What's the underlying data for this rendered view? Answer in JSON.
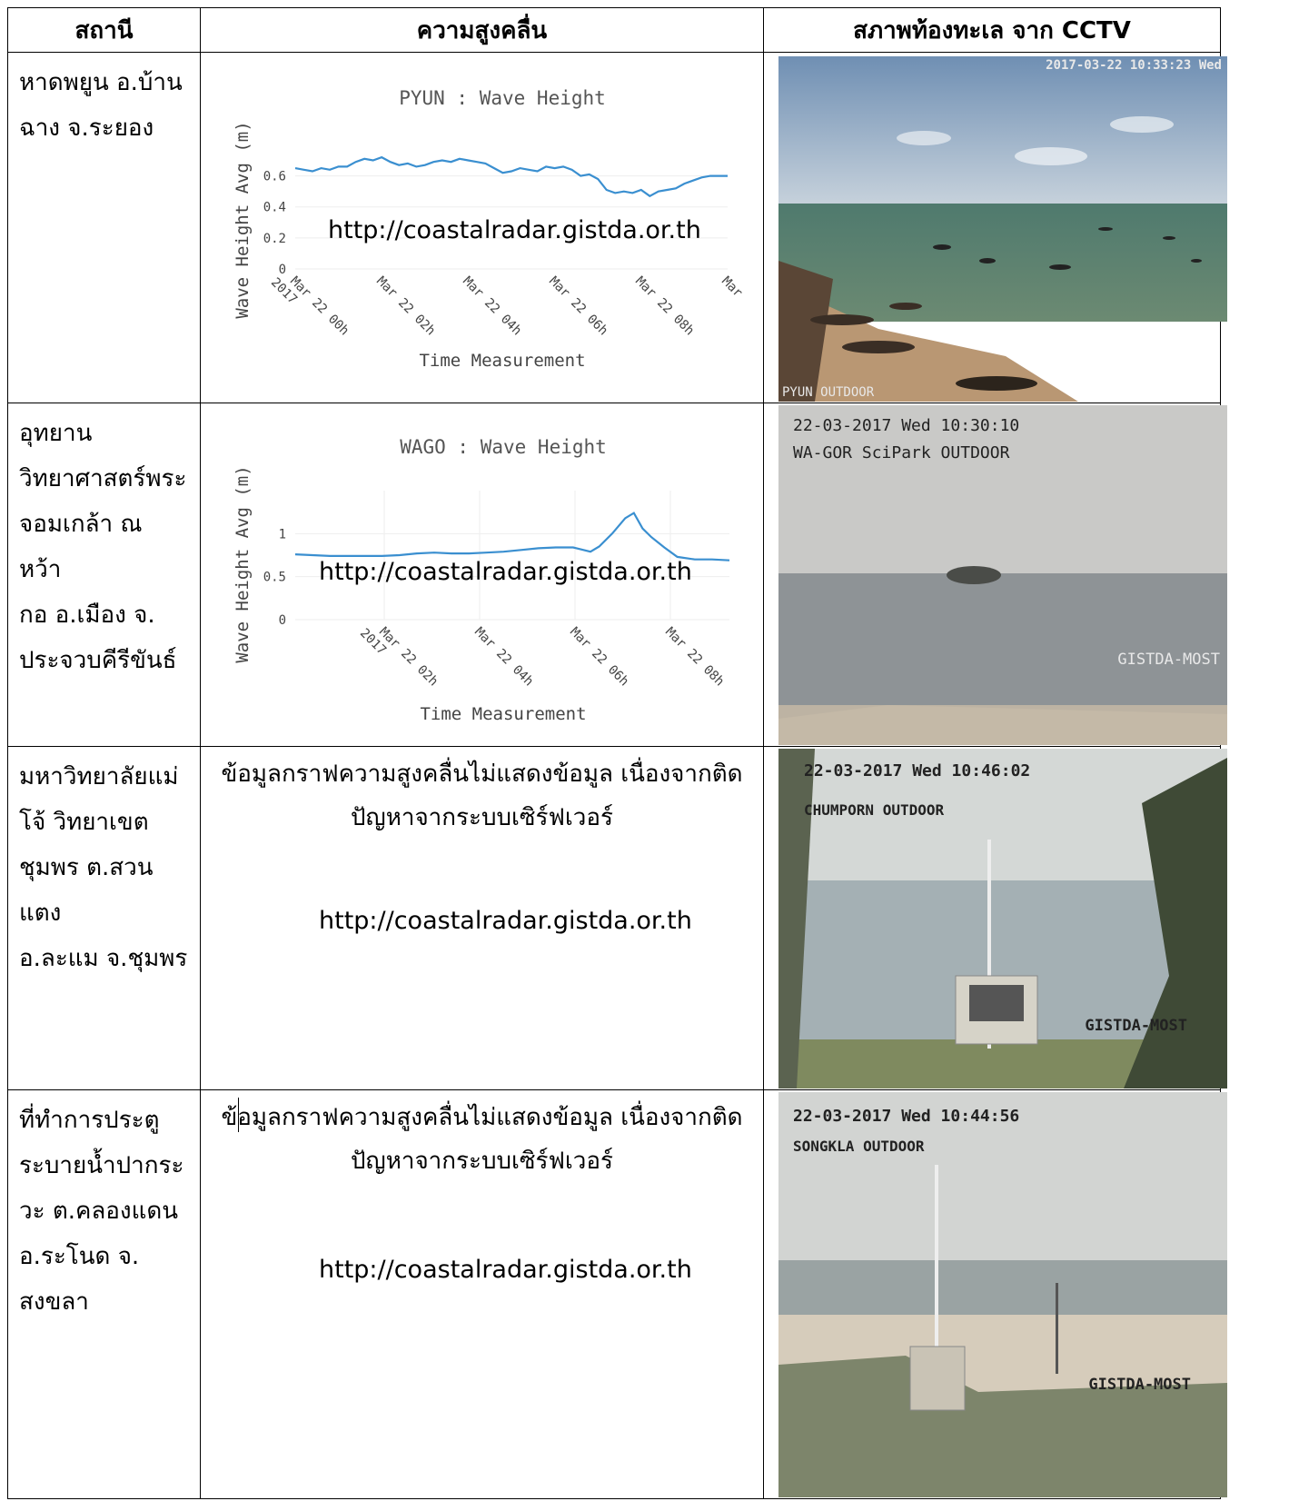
{
  "headers": [
    "สถานี",
    "ความสูงคลื่น",
    "สภาพท้องทะเล จาก CCTV"
  ],
  "watermark_url": "http://coastalradar.gistda.or.th",
  "nodata_line1": "ข้อมูลกราฟความสูงคลื่นไม่แสดงข้อมูล เนื่องจากติด",
  "nodata_line2": "ปัญหาจากระบบเซิร์ฟเวอร์",
  "rows": [
    {
      "station_lines": [
        "หาดพยูน อ.บ้าน",
        "ฉาง จ.ระยอง"
      ],
      "cctv": {
        "top_text": "2017-03-22 10:33:23 Wed",
        "second_text": "",
        "bottom_text": "PYUN OUTDOOR",
        "right_text": ""
      }
    },
    {
      "station_lines": [
        "อุทยาน",
        "วิทยาศาสตร์พระ",
        "จอมเกล้า ณ หว้า",
        "กอ อ.เมือง จ.",
        "ประจวบคีรีขันธ์"
      ],
      "cctv": {
        "top_text": "22-03-2017 Wed 10:30:10",
        "second_text": "WA-GOR SciPark OUTDOOR",
        "bottom_text": "",
        "right_text": "GISTDA-MOST"
      }
    },
    {
      "station_lines": [
        "มหาวิทยาลัยแม่",
        "โจ้ วิทยาเขต",
        "ชุมพร ต.สวนแตง",
        "อ.ละแม จ.ชุมพร"
      ],
      "cctv": {
        "top_text": "22-03-2017 Wed 10:46:02",
        "second_text": "CHUMPORN OUTDOOR",
        "bottom_text": "",
        "right_text": "GISTDA-MOST"
      }
    },
    {
      "station_lines": [
        "ที่ทำการประตู",
        "ระบายน้ำปากระ",
        "วะ ต.คลองแดน",
        "อ.ระโนด จ.",
        "สงขลา"
      ],
      "cctv": {
        "top_text": "22-03-2017 Wed 10:44:56",
        "second_text": "SONGKLA OUTDOOR",
        "bottom_text": "",
        "right_text": "GISTDA-MOST"
      }
    }
  ],
  "chart_data": [
    {
      "type": "line",
      "title": "PYUN : Wave Height",
      "xlabel": "Time Measurement",
      "ylabel": "Wave Height Avg (m)",
      "yticks": [
        "0",
        "0.2",
        "0.4",
        "0.6"
      ],
      "xticks": [
        "Mar 22 00h 2017",
        "Mar 22 02h",
        "Mar 22 04h",
        "Mar 22 06h",
        "Mar 22 08h",
        "Mar"
      ],
      "ylim": [
        0,
        0.75
      ],
      "xlim": [
        0,
        10
      ],
      "color": "#3a8fd0",
      "x": [
        0,
        0.2,
        0.4,
        0.6,
        0.8,
        1.0,
        1.2,
        1.4,
        1.6,
        1.8,
        2.0,
        2.2,
        2.4,
        2.6,
        2.8,
        3.0,
        3.2,
        3.4,
        3.6,
        3.8,
        4.0,
        4.2,
        4.4,
        4.6,
        4.8,
        5.0,
        5.2,
        5.4,
        5.6,
        5.8,
        6.0,
        6.2,
        6.4,
        6.6,
        6.8,
        7.0,
        7.2,
        7.4,
        7.6,
        7.8,
        8.0,
        8.2,
        8.4,
        8.6,
        8.8,
        9.0,
        9.2,
        9.4,
        9.6,
        9.8,
        10.0
      ],
      "values": [
        0.65,
        0.64,
        0.63,
        0.65,
        0.64,
        0.66,
        0.66,
        0.69,
        0.71,
        0.7,
        0.72,
        0.69,
        0.67,
        0.68,
        0.66,
        0.67,
        0.69,
        0.7,
        0.69,
        0.71,
        0.7,
        0.69,
        0.68,
        0.65,
        0.62,
        0.63,
        0.65,
        0.64,
        0.63,
        0.66,
        0.65,
        0.66,
        0.64,
        0.6,
        0.61,
        0.58,
        0.51,
        0.49,
        0.5,
        0.49,
        0.51,
        0.47,
        0.5,
        0.51,
        0.52,
        0.55,
        0.57,
        0.59,
        0.6,
        0.6,
        0.6
      ]
    },
    {
      "type": "line",
      "title": "WAGO : Wave Height",
      "xlabel": "Time Measurement",
      "ylabel": "Wave Height Avg (m)",
      "yticks": [
        "0",
        "0.5",
        "1"
      ],
      "xticks": [
        "Mar 22 02h 2017",
        "Mar 22 04h",
        "Mar 22 06h",
        "Mar 22 08h"
      ],
      "ylim": [
        0,
        1.5
      ],
      "xlim": [
        0,
        10
      ],
      "color": "#3a8fd0",
      "x": [
        0,
        0.4,
        0.8,
        1.2,
        1.6,
        2.0,
        2.4,
        2.8,
        3.2,
        3.6,
        4.0,
        4.4,
        4.8,
        5.2,
        5.6,
        6.0,
        6.4,
        6.8,
        7.0,
        7.3,
        7.6,
        7.8,
        8.0,
        8.2,
        8.5,
        8.8,
        9.2,
        9.6,
        10.0
      ],
      "values": [
        0.76,
        0.75,
        0.74,
        0.74,
        0.74,
        0.74,
        0.75,
        0.77,
        0.78,
        0.77,
        0.77,
        0.78,
        0.79,
        0.81,
        0.83,
        0.84,
        0.84,
        0.79,
        0.85,
        1.0,
        1.18,
        1.24,
        1.06,
        0.96,
        0.84,
        0.73,
        0.7,
        0.7,
        0.69
      ]
    }
  ]
}
